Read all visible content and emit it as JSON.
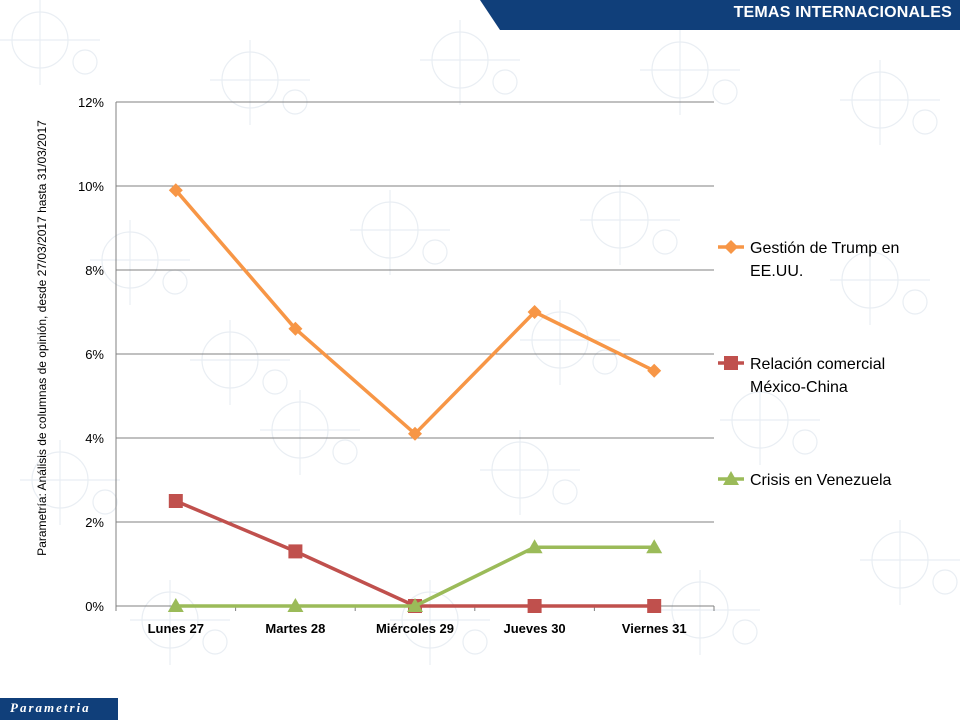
{
  "header": {
    "title": "TEMAS INTERNACIONALES"
  },
  "footer": {
    "logo": "Parametria"
  },
  "colors": {
    "banner": "#103f7a",
    "grid": "#808080",
    "axis": "#808080"
  },
  "chart_data": {
    "type": "line",
    "categories": [
      "Lunes 27",
      "Martes 28",
      "Miércoles 29",
      "Jueves 30",
      "Viernes 31"
    ],
    "ylabel": "Parametría: Análisis de columnas de opinión, desde 27/03/2017  hasta  31/03/2017",
    "xlabel": "",
    "ylim": [
      0,
      12
    ],
    "yticks": [
      "0%",
      "2%",
      "4%",
      "6%",
      "8%",
      "10%",
      "12%"
    ],
    "grid": true,
    "legend_position": "right",
    "series": [
      {
        "name": "Gestión de Trump en EE.UU.",
        "legend_lines": [
          "Gestión de Trump en",
          "EE.UU."
        ],
        "color": "#f79646",
        "marker": "diamond",
        "values": [
          9.9,
          6.6,
          4.1,
          7.0,
          5.6
        ]
      },
      {
        "name": "Relación comercial México-China",
        "legend_lines": [
          "Relación comercial",
          "México-China"
        ],
        "color": "#c0504d",
        "marker": "square",
        "values": [
          2.5,
          1.3,
          0.0,
          0.0,
          0.0
        ]
      },
      {
        "name": "Crisis en Venezuela",
        "legend_lines": [
          "Crisis en Venezuela"
        ],
        "color": "#9bbb59",
        "marker": "triangle",
        "values": [
          0.0,
          0.0,
          0.0,
          1.4,
          1.4
        ]
      }
    ]
  }
}
